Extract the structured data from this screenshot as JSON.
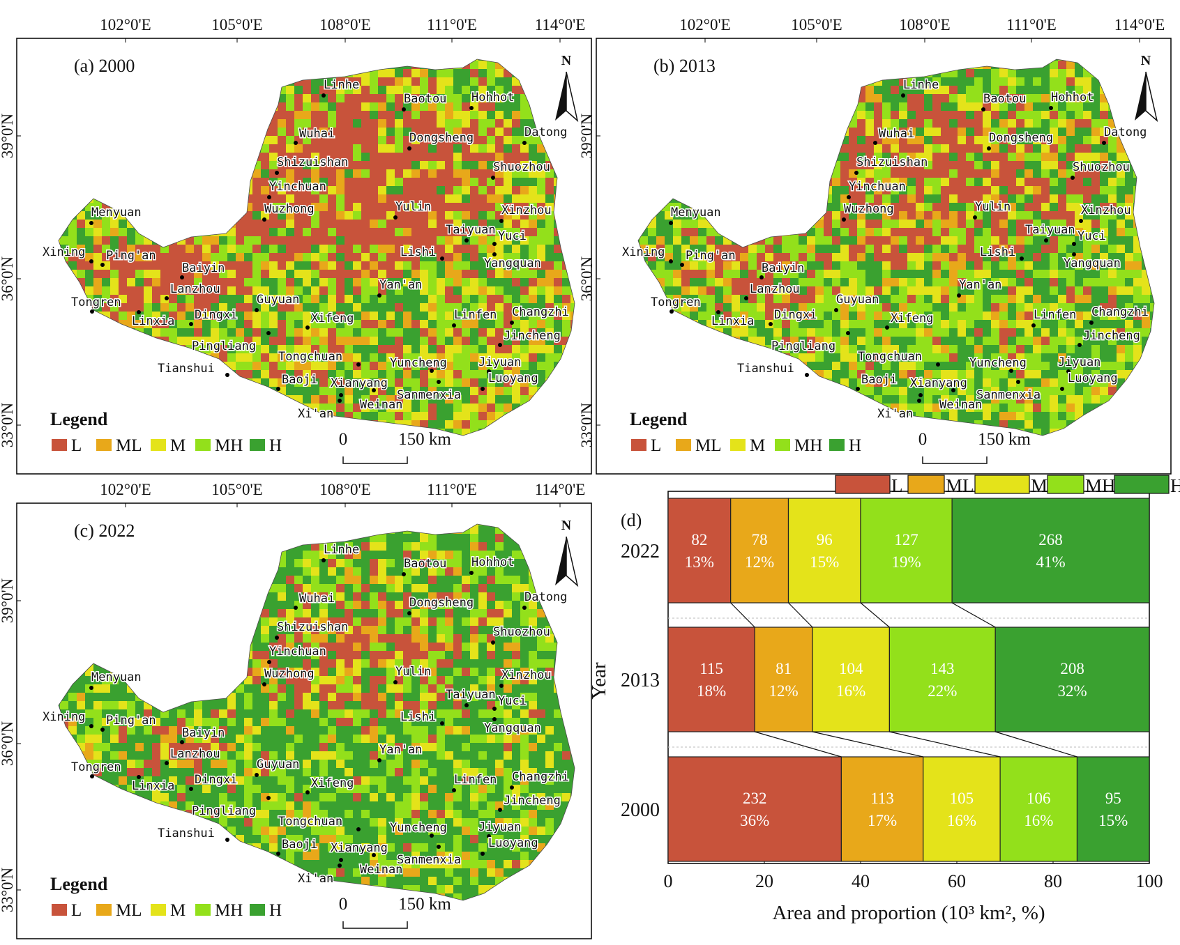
{
  "colors": {
    "L": "#c8533b",
    "ML": "#e8a81a",
    "M": "#e4e31a",
    "MH": "#93e01b",
    "H": "#3aa130"
  },
  "maps": [
    {
      "panel_label": "(a) 2000",
      "top_ticks": [
        "102°0'E",
        "105°0'E",
        "108°0'E",
        "111°0'E",
        "114°0'E"
      ],
      "side_ticks": [
        "39°0'N",
        "36°0'N",
        "33°0'N"
      ],
      "north": "N",
      "legend_title": "Legend",
      "legend": [
        "L",
        "ML",
        "M",
        "MH",
        "H"
      ],
      "scale": {
        "zero": "0",
        "label": "150 km"
      },
      "mix": {
        "L": 0.5,
        "ML": 0.1,
        "M": 0.15,
        "MH": 0.15,
        "H": 0.1
      },
      "cities": [
        "Linhe",
        "Baotou",
        "Hohhot",
        "Wuhai",
        "Dongsheng",
        "Datong",
        "Shizuishan",
        "Shuozhou",
        "Yinchuan",
        "Wuzhong",
        "Yulin",
        "Xinzhou",
        "Menyuan",
        "Taiyuan",
        "Yuci",
        "Xining",
        "Ping'an",
        "Lishi",
        "Yangquan",
        "Baiyin",
        "Lanzhou",
        "Yan'an",
        "Tongren",
        "Guyuan",
        "Changzhi",
        "Linfen",
        "Dingxi",
        "Xifeng",
        "Linxia",
        "Jincheng",
        "Pingliang",
        "Tongchuan",
        "Yuncheng",
        "Jiyuan",
        "Tianshui",
        "Baoji",
        "Luoyang",
        "Xianyang",
        "Sanmenxia",
        "Xi'an",
        "Weinan"
      ]
    },
    {
      "panel_label": "(b) 2013",
      "top_ticks": [
        "102°0'E",
        "105°0'E",
        "108°0'E",
        "111°0'E",
        "114°0'E"
      ],
      "side_ticks": [
        "39°0'N",
        "36°0'N",
        "33°0'N"
      ],
      "north": "N",
      "legend_title": "Legend",
      "legend": [
        "L",
        "ML",
        "M",
        "MH",
        "H"
      ],
      "scale": {
        "zero": "0",
        "label": "150 km"
      },
      "mix": {
        "L": 0.3,
        "ML": 0.12,
        "M": 0.16,
        "MH": 0.22,
        "H": 0.2
      },
      "cities": [
        "Linhe",
        "Baotou",
        "Hohhot",
        "Wuhai",
        "Dongsheng",
        "Datong",
        "Shizuishan",
        "Shuozhou",
        "Yinchuan",
        "Wuzhong",
        "Yulin",
        "Xinzhou",
        "Menyuan",
        "Taiyuan",
        "Yuci",
        "Xining",
        "Ping'an",
        "Lishi",
        "Yangquan",
        "Baiyin",
        "Lanzhou",
        "Yan'an",
        "Tongren",
        "Guyuan",
        "Changzhi",
        "Linfen",
        "Dingxi",
        "Xifeng",
        "Linxia",
        "Jincheng",
        "Pingliang",
        "Tongchuan",
        "Yuncheng",
        "Jiyuan",
        "Tianshui",
        "Baoji",
        "Luoyang",
        "Xianyang",
        "Sanmenxia",
        "Xi'an",
        "Weinan"
      ]
    },
    {
      "panel_label": "(c) 2022",
      "top_ticks": [
        "102°0'E",
        "105°0'E",
        "108°0'E",
        "111°0'E",
        "114°0'E"
      ],
      "side_ticks": [
        "39°0'N",
        "36°0'N",
        "33°0'N"
      ],
      "north": "N",
      "legend_title": "Legend",
      "legend": [
        "L",
        "ML",
        "M",
        "MH",
        "H"
      ],
      "scale": {
        "zero": "0",
        "label": "150 km"
      },
      "mix": {
        "L": 0.18,
        "ML": 0.1,
        "M": 0.14,
        "MH": 0.2,
        "H": 0.38
      },
      "cities": [
        "Linhe",
        "Baotou",
        "Hohhot",
        "Wuhai",
        "Dongsheng",
        "Datong",
        "Shizuishan",
        "Shuozhou",
        "Yinchuan",
        "Wuzhong",
        "Yulin",
        "Xinzhou",
        "Menyuan",
        "Taiyuan",
        "Yuci",
        "Xining",
        "Ping'an",
        "Lishi",
        "Yangquan",
        "Baiyin",
        "Lanzhou",
        "Yan'an",
        "Tongren",
        "Guyuan",
        "Changzhi",
        "Linfen",
        "Dingxi",
        "Xifeng",
        "Linxia",
        "Jincheng",
        "Pingliang",
        "Tongchuan",
        "Yuncheng",
        "Jiyuan",
        "Tianshui",
        "Baoji",
        "Luoyang",
        "Xianyang",
        "Sanmenxia",
        "Xi'an",
        "Weinan"
      ]
    }
  ],
  "chart_data": {
    "type": "bar",
    "panel_label": "(d)",
    "title": "",
    "xlabel": "Area and proportion (10³ km², %)",
    "ylabel": "Year",
    "xlim": [
      0,
      100
    ],
    "xticks": [
      "0",
      "20",
      "40",
      "60",
      "80",
      "100"
    ],
    "categories": [
      "2022",
      "2013",
      "2000"
    ],
    "legend": [
      "L",
      "ML",
      "M",
      "MH",
      "H"
    ],
    "series": [
      {
        "name": "L",
        "area": [
          82,
          115,
          232
        ],
        "percent": [
          13,
          18,
          36
        ],
        "labels": [
          "13%",
          "18%",
          "36%"
        ]
      },
      {
        "name": "ML",
        "area": [
          78,
          81,
          113
        ],
        "percent": [
          12,
          12,
          17
        ],
        "labels": [
          "12%",
          "12%",
          "17%"
        ]
      },
      {
        "name": "M",
        "area": [
          96,
          104,
          105
        ],
        "percent": [
          15,
          16,
          16
        ],
        "labels": [
          "15%",
          "16%",
          "16%"
        ]
      },
      {
        "name": "MH",
        "area": [
          127,
          143,
          106
        ],
        "percent": [
          19,
          22,
          16
        ],
        "labels": [
          "19%",
          "22%",
          "16%"
        ]
      },
      {
        "name": "H",
        "area": [
          268,
          208,
          95
        ],
        "percent": [
          41,
          32,
          15
        ],
        "labels": [
          "41%",
          "32%",
          "15%"
        ]
      }
    ]
  }
}
